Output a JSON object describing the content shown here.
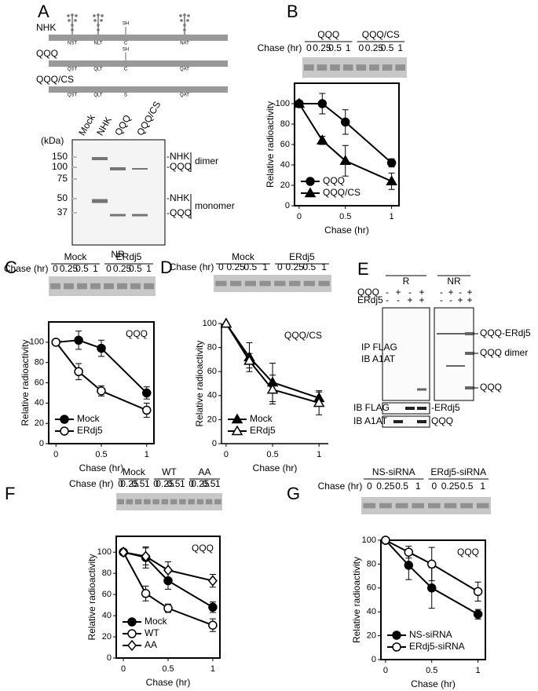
{
  "panel_a": {
    "letter": "A",
    "constructs": [
      {
        "name": "NHK",
        "sites": [
          "NST",
          "NLT",
          "C",
          "NAT"
        ],
        "sh": "SH"
      },
      {
        "name": "QQQ",
        "sites": [
          "QST",
          "QLT",
          "C",
          "QAT"
        ],
        "sh": "SH"
      },
      {
        "name": "QQQ/CS",
        "sites": [
          "QST",
          "QLT",
          "S",
          "QAT"
        ]
      }
    ],
    "gel": {
      "lanes": [
        "Mock",
        "NHK",
        "QQQ",
        "QQQ/CS"
      ],
      "unit": "(kDa)",
      "markers": [
        "150",
        "100",
        "75",
        "50",
        "37"
      ],
      "bands": [
        "-NHK",
        "-QQQ",
        "-NHK",
        "-QQQ"
      ],
      "groups": [
        "dimer",
        "monomer"
      ],
      "condition": "NR"
    }
  },
  "panel_e": {
    "letter": "E",
    "conditions": [
      "R",
      "NR"
    ],
    "rows": [
      {
        "name": "QQQ",
        "signs": [
          "-",
          "+",
          "-",
          "+"
        ]
      },
      {
        "name": "ERdj5",
        "signs": [
          "-",
          "-",
          "+",
          "+"
        ]
      }
    ],
    "ip_labels": [
      "IP FLAG",
      "IB A1AT"
    ],
    "ip_bands": [
      "QQQ-ERdj5",
      "QQQ dimer",
      "QQQ"
    ],
    "ib": [
      {
        "label": "IB FLAG",
        "band": "-ERdj5"
      },
      {
        "label": "IB A1AT",
        "band": "QQQ"
      }
    ]
  },
  "chart_data": [
    {
      "panel": "B",
      "type": "line",
      "gel": {
        "label": "Chase (hr)",
        "groups": [
          "QQQ",
          "QQQ/CS"
        ],
        "lanes": [
          "0",
          "0.25",
          "0.5",
          "1"
        ]
      },
      "x": [
        0,
        0.25,
        0.5,
        1
      ],
      "xlim": [
        -0.05,
        1.08
      ],
      "xticks": [
        0,
        0.5,
        1
      ],
      "ylim": [
        0,
        120
      ],
      "yticks": [
        0,
        20,
        40,
        60,
        80,
        100
      ],
      "xlabel": "Chase (hr)",
      "ylabel": "Relative radioactivity",
      "legend": "lower left",
      "box": true,
      "series": [
        {
          "name": "QQQ",
          "color": "#000000",
          "marker": "circle",
          "filled": true,
          "values": [
            100,
            100,
            82,
            42
          ],
          "errors": [
            0,
            10,
            12,
            4
          ]
        },
        {
          "name": "QQQ/CS",
          "color": "#000000",
          "marker": "triangle",
          "filled": true,
          "values": [
            100,
            64,
            44,
            24
          ],
          "errors": [
            0,
            4,
            15,
            8
          ]
        }
      ]
    },
    {
      "panel": "C",
      "type": "line",
      "gel": {
        "label": "Chase (hr)",
        "groups": [
          "Mock",
          "ERdj5"
        ],
        "lanes": [
          "0",
          "0.25",
          "0.5",
          "1"
        ]
      },
      "annotation": "QQQ",
      "x": [
        0,
        0.25,
        0.5,
        1
      ],
      "xlim": [
        -0.08,
        1.08
      ],
      "xticks": [
        0,
        0.5,
        1
      ],
      "ylim": [
        0,
        120
      ],
      "yticks": [
        0,
        20,
        40,
        60,
        80,
        100
      ],
      "xlabel": "Chase (hr)",
      "ylabel": "Relative radioactivity",
      "legend": "lower left",
      "box": true,
      "series": [
        {
          "name": "Mock",
          "color": "#000000",
          "marker": "circle",
          "filled": true,
          "values": [
            100,
            102,
            94,
            50
          ],
          "errors": [
            0,
            9,
            8,
            6
          ]
        },
        {
          "name": "ERdj5",
          "color": "#000000",
          "marker": "circle",
          "filled": false,
          "values": [
            100,
            71,
            52,
            33
          ],
          "errors": [
            0,
            8,
            5,
            7
          ]
        }
      ]
    },
    {
      "panel": "D",
      "type": "line",
      "gel": {
        "label": "Chase (hr)",
        "groups": [
          "Mock",
          "ERdj5"
        ],
        "lanes": [
          "0",
          "0.25",
          "0.5",
          "1"
        ]
      },
      "annotation": "QQQ/CS",
      "x": [
        0,
        0.25,
        0.5,
        1
      ],
      "xlim": [
        -0.05,
        1.1
      ],
      "xticks": [
        0,
        0.5,
        1
      ],
      "ylim": [
        0,
        100
      ],
      "yticks": [
        0,
        20,
        40,
        60,
        80,
        100
      ],
      "xlabel": "Chase (hr)",
      "ylabel": "Relative radioactivity",
      "legend": "lower left",
      "box": false,
      "series": [
        {
          "name": "Mock",
          "color": "#000000",
          "marker": "triangle",
          "filled": true,
          "values": [
            100,
            72,
            51,
            38
          ],
          "errors": [
            0,
            12,
            16,
            5
          ]
        },
        {
          "name": "ERdj5",
          "color": "#000000",
          "marker": "triangle",
          "filled": false,
          "values": [
            100,
            69,
            45,
            34
          ],
          "errors": [
            0,
            6,
            12,
            10
          ]
        }
      ]
    },
    {
      "panel": "F",
      "type": "line",
      "gel": {
        "label": "Chase (hr)",
        "groups": [
          "Mock",
          "WT",
          "AA"
        ],
        "lanes": [
          "0",
          "0.25",
          "0.5",
          "1"
        ]
      },
      "annotation": "QQQ",
      "x": [
        0,
        0.25,
        0.5,
        1
      ],
      "xlim": [
        -0.08,
        1.08
      ],
      "xticks": [
        0,
        0.5,
        1
      ],
      "ylim": [
        0,
        115
      ],
      "yticks": [
        0,
        20,
        40,
        60,
        80,
        100
      ],
      "xlabel": "Chase (hr)",
      "ylabel": "Relative radioactivity",
      "legend": "lower left",
      "box": true,
      "series": [
        {
          "name": "Mock",
          "color": "#000000",
          "marker": "circle",
          "filled": true,
          "values": [
            100,
            95,
            73,
            48
          ],
          "errors": [
            0,
            10,
            8,
            5
          ]
        },
        {
          "name": "WT",
          "color": "#000000",
          "marker": "circle",
          "filled": false,
          "values": [
            100,
            61,
            47,
            31
          ],
          "errors": [
            0,
            7,
            4,
            6
          ]
        },
        {
          "name": "AA",
          "color": "#000000",
          "marker": "diamond",
          "filled": false,
          "values": [
            100,
            96,
            83,
            73
          ],
          "errors": [
            0,
            8,
            8,
            6
          ]
        }
      ]
    },
    {
      "panel": "G",
      "type": "line",
      "gel": {
        "label": "Chase (hr)",
        "groups": [
          "NS-siRNA",
          "ERdj5-siRNA"
        ],
        "lanes": [
          "0",
          "0.25",
          "0.5",
          "1"
        ]
      },
      "annotation": "QQQ",
      "x": [
        0,
        0.25,
        0.5,
        1
      ],
      "xlim": [
        -0.05,
        1.08
      ],
      "xticks": [
        0,
        0.5,
        1
      ],
      "ylim": [
        0,
        100
      ],
      "yticks": [
        0,
        20,
        40,
        60,
        80,
        100
      ],
      "xlabel": "Chase (hr)",
      "ylabel": "Relative radioactivity",
      "legend": "lower left",
      "box": true,
      "series": [
        {
          "name": "NS-siRNA",
          "color": "#000000",
          "marker": "circle",
          "filled": true,
          "values": [
            100,
            79,
            60,
            38
          ],
          "errors": [
            0,
            12,
            17,
            4
          ]
        },
        {
          "name": "ERdj5-siRNA",
          "color": "#000000",
          "marker": "circle",
          "filled": false,
          "values": [
            100,
            90,
            80,
            57
          ],
          "errors": [
            0,
            5,
            14,
            8
          ]
        }
      ]
    }
  ]
}
